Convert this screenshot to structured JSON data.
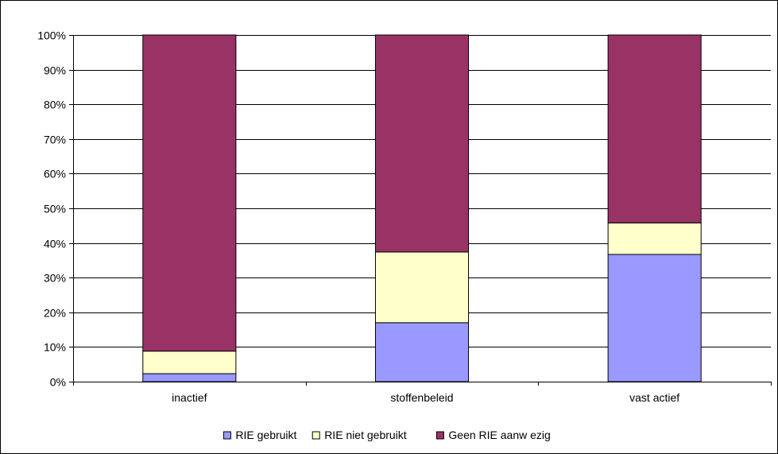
{
  "chart_data": {
    "type": "bar",
    "stacked": true,
    "percent_stacked": true,
    "categories": [
      "inactief",
      "stoffenbeleid",
      "vast actief"
    ],
    "series": [
      {
        "name": "RIE gebruikt",
        "color": "#9999ff",
        "values": [
          2.3,
          17.0,
          36.7
        ]
      },
      {
        "name": "RIE  niet gebruikt",
        "color": "#ffffcc",
        "values": [
          6.5,
          20.4,
          9.1
        ]
      },
      {
        "name": "Geen RIE aanw ezig",
        "color": "#993366",
        "values": [
          91.2,
          62.6,
          54.2
        ]
      }
    ],
    "ylim": [
      0,
      100
    ],
    "yticks": [
      "0%",
      "10%",
      "20%",
      "30%",
      "40%",
      "50%",
      "60%",
      "70%",
      "80%",
      "90%",
      "100%"
    ],
    "grid": true,
    "legend_position": "bottom"
  }
}
